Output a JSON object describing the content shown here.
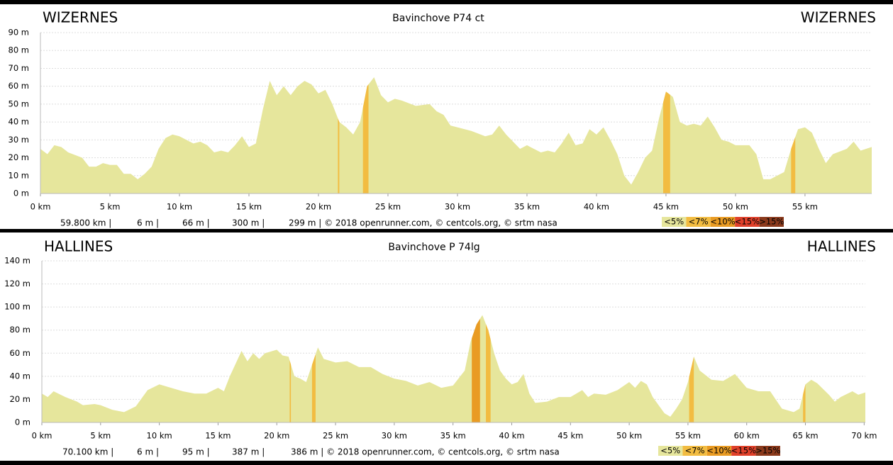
{
  "chart_data": [
    {
      "type": "area",
      "title": "Bavinchove P74 ct",
      "start_label": "WIZERNES",
      "end_label": "WIZERNES",
      "color": "#e6e69c",
      "x": [
        0,
        0.5,
        1,
        1.5,
        2,
        3,
        3.5,
        4,
        4.5,
        5,
        5.5,
        6,
        6.5,
        7,
        7.5,
        8,
        8.5,
        9,
        9.5,
        10,
        10.5,
        11,
        11.5,
        12,
        12.5,
        13,
        13.5,
        14,
        14.5,
        15,
        15.5,
        16,
        16.5,
        17,
        17.5,
        18,
        18.5,
        19,
        19.5,
        20,
        20.5,
        21,
        21.5,
        22,
        22.5,
        23,
        23.5,
        24,
        24.5,
        25,
        25.5,
        26,
        27,
        28,
        28.5,
        29,
        29.5,
        30,
        31,
        32,
        32.5,
        33,
        33.5,
        34,
        34.5,
        35,
        35.5,
        36,
        36.5,
        37,
        37.5,
        38,
        38.5,
        39,
        39.5,
        40,
        40.5,
        41,
        41.5,
        42,
        42.5,
        43,
        43.5,
        44,
        44.5,
        45,
        45.5,
        46,
        46.5,
        47,
        47.5,
        48,
        48.5,
        49,
        49.5,
        50,
        51,
        51.5,
        52,
        52.5,
        53,
        53.5,
        54,
        54.5,
        55,
        55.5,
        56,
        56.5,
        57,
        58,
        58.5,
        59,
        59.8
      ],
      "values": [
        25,
        22,
        27,
        26,
        23,
        20,
        15,
        15,
        17,
        16,
        16,
        11,
        11,
        8,
        11,
        15,
        25,
        31,
        33,
        32,
        30,
        28,
        29,
        27,
        23,
        24,
        23,
        27,
        32,
        26,
        28,
        47,
        63,
        55,
        60,
        55,
        60,
        63,
        61,
        56,
        58,
        50,
        40,
        37,
        33,
        40,
        60,
        65,
        55,
        51,
        53,
        52,
        49,
        50,
        46,
        44,
        38,
        37,
        35,
        32,
        33,
        38,
        33,
        29,
        25,
        27,
        25,
        23,
        24,
        23,
        28,
        34,
        27,
        28,
        36,
        33,
        37,
        30,
        22,
        10,
        5,
        12,
        20,
        24,
        42,
        57,
        54,
        40,
        38,
        39,
        38,
        43,
        37,
        30,
        29,
        27,
        27,
        22,
        8,
        8,
        10,
        12,
        25,
        36,
        37,
        34,
        25,
        17,
        22,
        25,
        29,
        24,
        26
      ],
      "segments": [
        [
          21.4,
          21.5,
          "#f2bc41"
        ],
        [
          23.2,
          23.6,
          "#f2bc41"
        ],
        [
          44.8,
          45.3,
          "#f2bc41"
        ],
        [
          54,
          54.3,
          "#f2bc41"
        ]
      ],
      "xlim": [
        0,
        59.8
      ],
      "ylim": [
        0,
        90
      ],
      "xticks": [
        {
          "value": 0,
          "label": "0 km"
        },
        {
          "value": 5,
          "label": "5 km"
        },
        {
          "value": 10,
          "label": "10 km"
        },
        {
          "value": 15,
          "label": "15 km"
        },
        {
          "value": 20,
          "label": "20 km"
        },
        {
          "value": 25,
          "label": "25 km"
        },
        {
          "value": 30,
          "label": "30 km"
        },
        {
          "value": 35,
          "label": "35 km"
        },
        {
          "value": 40,
          "label": "40 km"
        },
        {
          "value": 45,
          "label": "45 km"
        },
        {
          "value": 50,
          "label": "50 km"
        },
        {
          "value": 55,
          "label": "55 km"
        }
      ],
      "yticks": [
        {
          "value": 0,
          "label": "0 m"
        },
        {
          "value": 10,
          "label": "10 m"
        },
        {
          "value": 20,
          "label": "20 m"
        },
        {
          "value": 30,
          "label": "30 m"
        },
        {
          "value": 40,
          "label": "40 m"
        },
        {
          "value": 50,
          "label": "50 m"
        },
        {
          "value": 60,
          "label": "60 m"
        },
        {
          "value": 70,
          "label": "70 m"
        },
        {
          "value": 80,
          "label": "80 m"
        },
        {
          "value": 90,
          "label": "90 m"
        }
      ],
      "grid": true,
      "footer": [
        "59.800 km |",
        "6 m |",
        "66 m |",
        "300 m |",
        "299 m | © 2018 openrunner.com, © centcols.org, © srtm nasa"
      ],
      "legend": [
        {
          "label": "<5%",
          "color": "#e6e69c"
        },
        {
          "label": "<7%",
          "color": "#f2bc41"
        },
        {
          "label": "<10%",
          "color": "#e99b23"
        },
        {
          "label": "<15%",
          "color": "#e0402a"
        },
        {
          "label": ">15%",
          "color": "#8b3a1c"
        }
      ]
    },
    {
      "type": "area",
      "title": "Bavinchove P 74lg",
      "start_label": "HALLINES",
      "end_label": "HALLINES",
      "color": "#e6e69c",
      "x": [
        0,
        0.5,
        1,
        2,
        3,
        3.5,
        4.5,
        5,
        6,
        7,
        8,
        9,
        10,
        11,
        12,
        13,
        14,
        15,
        15.5,
        16,
        17,
        17.5,
        18,
        18.5,
        19,
        20,
        20.5,
        21,
        21.5,
        22,
        22.5,
        23,
        23.5,
        24,
        25,
        26,
        27,
        28,
        29,
        30,
        31,
        32,
        33,
        34,
        35,
        36,
        36.5,
        37,
        37.5,
        38,
        38.5,
        39,
        39.5,
        40,
        40.5,
        41,
        41.5,
        42,
        43,
        44,
        45,
        46,
        46.5,
        47,
        48,
        49,
        50,
        50.5,
        51,
        51.5,
        52,
        53,
        53.5,
        54,
        54.5,
        55,
        55.5,
        56,
        57,
        58,
        59,
        59.5,
        60,
        61,
        62,
        63,
        64,
        64.5,
        65,
        65.5,
        66,
        67,
        67.5,
        68,
        69,
        69.5,
        70.1
      ],
      "values": [
        25,
        22,
        27,
        22,
        18,
        15,
        16,
        15,
        11,
        9,
        14,
        28,
        33,
        30,
        27,
        25,
        25,
        30,
        27,
        40,
        62,
        53,
        60,
        55,
        60,
        63,
        58,
        57,
        40,
        38,
        35,
        50,
        65,
        55,
        52,
        53,
        48,
        48,
        42,
        38,
        36,
        32,
        35,
        30,
        32,
        45,
        70,
        85,
        93,
        80,
        60,
        45,
        38,
        33,
        35,
        42,
        25,
        17,
        18,
        22,
        22,
        28,
        22,
        25,
        24,
        28,
        35,
        30,
        36,
        33,
        22,
        8,
        5,
        12,
        20,
        35,
        57,
        45,
        37,
        36,
        42,
        36,
        30,
        27,
        27,
        12,
        9,
        12,
        33,
        37,
        34,
        24,
        18,
        22,
        27,
        24,
        26
      ],
      "segments": [
        [
          21.1,
          21.2,
          "#f2bc41"
        ],
        [
          23,
          23.3,
          "#f2bc41"
        ],
        [
          36.6,
          37.3,
          "#e99b23"
        ],
        [
          37.8,
          38.2,
          "#f2bc41"
        ],
        [
          55.1,
          55.5,
          "#f2bc41"
        ],
        [
          64.8,
          65,
          "#f2bc41"
        ]
      ],
      "xlim": [
        0,
        70.1
      ],
      "ylim": [
        0,
        140
      ],
      "xticks": [
        {
          "value": 0,
          "label": "0 km"
        },
        {
          "value": 5,
          "label": "5 km"
        },
        {
          "value": 10,
          "label": "10 km"
        },
        {
          "value": 15,
          "label": "15 km"
        },
        {
          "value": 20,
          "label": "20 km"
        },
        {
          "value": 25,
          "label": "25 km"
        },
        {
          "value": 30,
          "label": "30 km"
        },
        {
          "value": 35,
          "label": "35 km"
        },
        {
          "value": 40,
          "label": "40 km"
        },
        {
          "value": 45,
          "label": "45 km"
        },
        {
          "value": 50,
          "label": "50 km"
        },
        {
          "value": 55,
          "label": "55 km"
        },
        {
          "value": 60,
          "label": "60 km"
        },
        {
          "value": 65,
          "label": "65 km"
        },
        {
          "value": 70,
          "label": "70 km"
        }
      ],
      "yticks": [
        {
          "value": 0,
          "label": "0 m"
        },
        {
          "value": 20,
          "label": "20 m"
        },
        {
          "value": 40,
          "label": "40 m"
        },
        {
          "value": 60,
          "label": "60 m"
        },
        {
          "value": 80,
          "label": "80 m"
        },
        {
          "value": 100,
          "label": "100 m"
        },
        {
          "value": 120,
          "label": "120 m"
        },
        {
          "value": 140,
          "label": "140 m"
        }
      ],
      "grid": true,
      "footer": [
        "70.100 km |",
        "6 m |",
        "95 m |",
        "387 m |",
        "386 m | © 2018 openrunner.com, © centcols.org, © srtm nasa"
      ],
      "legend": [
        {
          "label": "<5%",
          "color": "#e6e69c"
        },
        {
          "label": "<7%",
          "color": "#f2bc41"
        },
        {
          "label": "<10%",
          "color": "#e99b23"
        },
        {
          "label": "<15%",
          "color": "#e0402a"
        },
        {
          "label": ">15%",
          "color": "#8b3a1c"
        }
      ]
    }
  ]
}
